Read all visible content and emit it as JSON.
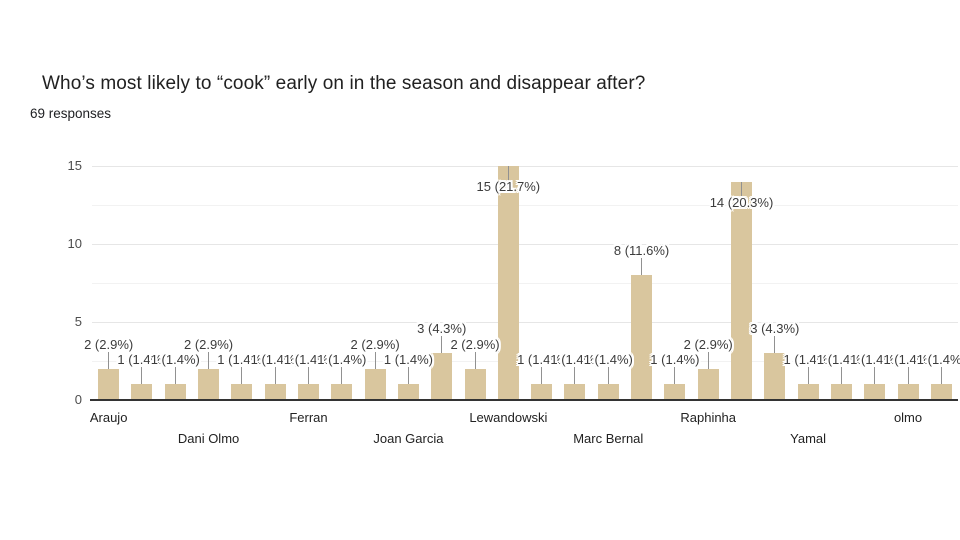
{
  "header": {
    "title": "Who’s most likely to “cook” early on in the season and disappear after?",
    "responses_label": "69 responses"
  },
  "chart_data": {
    "type": "bar",
    "title": "Who’s most likely to “cook” early on in the season and disappear after?",
    "subtitle": "69 responses",
    "values": [
      2,
      1,
      1,
      2,
      1,
      1,
      1,
      1,
      2,
      1,
      3,
      2,
      15,
      1,
      1,
      1,
      8,
      1,
      2,
      14,
      3,
      1,
      1,
      1,
      1,
      1
    ],
    "annotations": [
      "2 (2.9%)",
      "1 (1.4%)",
      "1 (1.4%)",
      "2 (2.9%)",
      "1 (1.4%)",
      "1 (1.4%)",
      "1 (1.4%)",
      "1 (1.4%)",
      "2 (2.9%)",
      "1 (1.4%)",
      "3 (4.3%)",
      "2 (2.9%)",
      "15 (21.7%)",
      "1 (1.4%)",
      "1 (1.4%)",
      "1 (1.4%)",
      "8 (11.6%)",
      "1 (1.4%)",
      "2 (2.9%)",
      "14 (20.3%)",
      "3 (4.3%)",
      "1 (1.4%)",
      "1 (1.4%)",
      "1 (1.4%)",
      "1 (1.4%)",
      "1 (1.4%)"
    ],
    "x_labels": [
      {
        "text": "Araujo",
        "bar_index": 0,
        "row": 1
      },
      {
        "text": "Dani Olmo",
        "bar_index": 3,
        "row": 2
      },
      {
        "text": "Ferran",
        "bar_index": 6,
        "row": 1
      },
      {
        "text": "Joan Garcia",
        "bar_index": 9,
        "row": 2
      },
      {
        "text": "Lewandowski",
        "bar_index": 12,
        "row": 1
      },
      {
        "text": "Marc Bernal",
        "bar_index": 15,
        "row": 2
      },
      {
        "text": "Raphinha",
        "bar_index": 18,
        "row": 1
      },
      {
        "text": "Yamal",
        "bar_index": 21,
        "row": 2
      },
      {
        "text": "olmo",
        "bar_index": 24,
        "row": 1
      }
    ],
    "y_ticks": [
      0,
      5,
      10,
      15
    ],
    "ylim": [
      0,
      15
    ],
    "grid": true,
    "legend_position": "none",
    "colors": {
      "bar": "#d9c69e",
      "gridline_major": "#e6e6e6",
      "gridline_minor": "#f2f2f2",
      "baseline": "#333333",
      "stem": "#919191",
      "annotation_text": "#3c3c3c",
      "axis_text": "#4d4d4d",
      "category_text": "#222222"
    }
  }
}
